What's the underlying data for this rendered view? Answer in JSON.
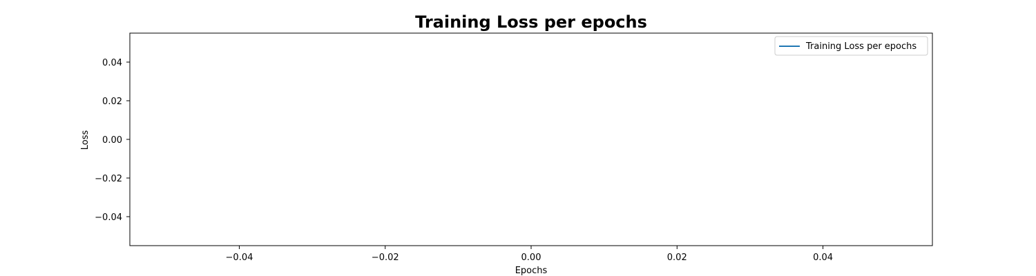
{
  "chart_data": {
    "type": "line",
    "title": "Training Loss per epochs",
    "xlabel": "Epochs",
    "ylabel": "Loss",
    "xlim": [
      -0.055,
      0.055
    ],
    "ylim": [
      -0.055,
      0.055
    ],
    "x_ticks": [
      -0.04,
      -0.02,
      0.0,
      0.02,
      0.04
    ],
    "x_tick_labels": [
      "−0.04",
      "−0.02",
      "0.00",
      "0.02",
      "0.04"
    ],
    "y_ticks": [
      0.04,
      0.02,
      0.0,
      -0.02,
      -0.04
    ],
    "y_tick_labels": [
      "0.04",
      "0.02",
      "0.00",
      "−0.02",
      "−0.04"
    ],
    "grid": false,
    "legend_position": "top-right",
    "series": [
      {
        "name": "Training Loss per epochs",
        "color": "#1f77b4",
        "x": [],
        "y": []
      }
    ]
  }
}
